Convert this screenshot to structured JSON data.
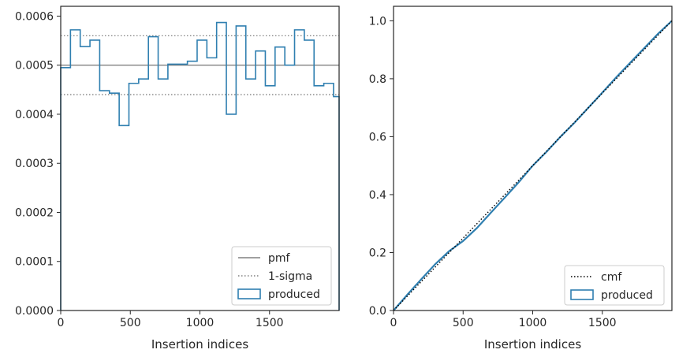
{
  "chart_data": [
    {
      "type": "histogram",
      "xlabel": "Insertion indices",
      "ylabel": "",
      "xlim": [
        0,
        2000
      ],
      "ylim": [
        0,
        0.00062
      ],
      "xticks": [
        0,
        500,
        1000,
        1500
      ],
      "xtick_labels": [
        "0",
        "500",
        "1000",
        "1500"
      ],
      "yticks": [
        0,
        0.0001,
        0.0002,
        0.0003,
        0.0004,
        0.0005,
        0.0006
      ],
      "ytick_labels": [
        "0.0000",
        "0.0001",
        "0.0002",
        "0.0003",
        "0.0004",
        "0.0005",
        "0.0006"
      ],
      "legend_position": "bottom-right",
      "reference_lines": [
        {
          "name": "pmf",
          "y": 0.0005,
          "style": "solid",
          "color": "#808080"
        },
        {
          "name": "1-sigma",
          "y": 0.00056,
          "style": "dotted",
          "color": "#808080"
        },
        {
          "name": "",
          "y": 0.00044,
          "style": "dotted",
          "color": "#808080"
        }
      ],
      "series": [
        {
          "name": "produced",
          "color": "#2f7fb0",
          "bin_edges": [
            0,
            70,
            140,
            210,
            280,
            350,
            420,
            490,
            560,
            630,
            700,
            770,
            840,
            910,
            980,
            1050,
            1120,
            1190,
            1260,
            1330,
            1400,
            1470,
            1540,
            1610,
            1680,
            1750,
            1820,
            1890,
            1960,
            2000
          ],
          "values": [
            0.000495,
            0.000572,
            0.000538,
            0.000551,
            0.000448,
            0.000443,
            0.000377,
            0.000463,
            0.000472,
            0.000558,
            0.000472,
            0.000502,
            0.000502,
            0.000508,
            0.000551,
            0.000515,
            0.000587,
            0.0004,
            0.00058,
            0.000472,
            0.000529,
            0.000458,
            0.000537,
            0.0005,
            0.000572,
            0.000551,
            0.000458,
            0.000463,
            0.000436
          ]
        }
      ]
    },
    {
      "type": "line",
      "xlabel": "Insertion indices",
      "ylabel": "",
      "xlim": [
        0,
        2000
      ],
      "ylim": [
        0,
        1.05
      ],
      "xticks": [
        0,
        500,
        1000,
        1500
      ],
      "xtick_labels": [
        "0",
        "500",
        "1000",
        "1500"
      ],
      "yticks": [
        0,
        0.2,
        0.4,
        0.6,
        0.8,
        1.0
      ],
      "ytick_labels": [
        "0.0",
        "0.2",
        "0.4",
        "0.6",
        "0.8",
        "1.0"
      ],
      "legend_position": "bottom-right",
      "series": [
        {
          "name": "cmf",
          "style": "dotted",
          "color": "#000000",
          "x": [
            0,
            2000
          ],
          "y": [
            0,
            1.0
          ]
        },
        {
          "name": "produced",
          "style": "step",
          "color": "#2f7fb0",
          "x": [
            0,
            100,
            200,
            300,
            400,
            500,
            600,
            700,
            800,
            900,
            1000,
            1100,
            1200,
            1300,
            1400,
            1500,
            1600,
            1700,
            1800,
            1900,
            2000
          ],
          "y": [
            0,
            0.055,
            0.108,
            0.16,
            0.205,
            0.24,
            0.285,
            0.338,
            0.39,
            0.443,
            0.5,
            0.548,
            0.6,
            0.648,
            0.7,
            0.752,
            0.805,
            0.855,
            0.905,
            0.955,
            1.0
          ]
        }
      ]
    }
  ]
}
